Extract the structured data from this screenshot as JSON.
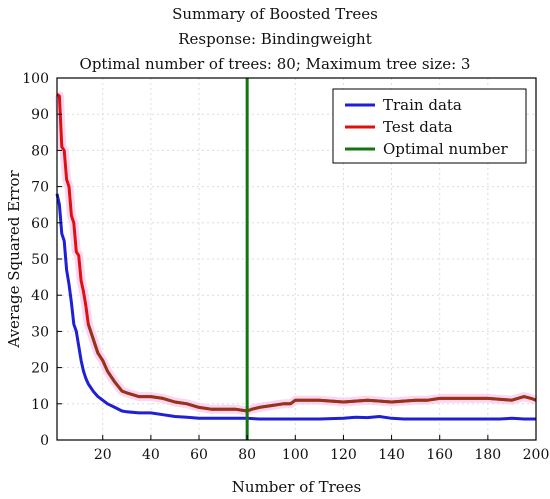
{
  "chart_data": {
    "type": "line",
    "title": "Summary of Boosted Trees",
    "subtitle": "Response: Bindingweight",
    "subtitle2": "Optimal number of trees: 80; Maximum tree size: 3",
    "xlabel": "Number of Trees",
    "ylabel": "Average Squared Error",
    "xlim": [
      1,
      200
    ],
    "ylim": [
      0,
      100
    ],
    "xticks": [
      20,
      40,
      60,
      80,
      100,
      120,
      140,
      160,
      180,
      200
    ],
    "yticks": [
      0,
      10,
      20,
      30,
      40,
      50,
      60,
      70,
      80,
      90,
      100
    ],
    "grid": true,
    "legend_position": "top-right",
    "optimal_x": 80,
    "series": [
      {
        "name": "Train data",
        "color": "#1f1fd6",
        "x": [
          1,
          2,
          3,
          4,
          5,
          6,
          7,
          8,
          9,
          10,
          11,
          12,
          13,
          14,
          15,
          16,
          18,
          20,
          22,
          25,
          28,
          30,
          35,
          40,
          45,
          50,
          55,
          60,
          65,
          70,
          75,
          80,
          85,
          90,
          100,
          110,
          120,
          125,
          130,
          135,
          140,
          145,
          150,
          160,
          170,
          180,
          185,
          190,
          195,
          200
        ],
        "values": [
          68,
          65,
          57,
          55,
          47,
          43,
          38,
          32,
          30,
          26,
          22,
          19,
          17,
          15.5,
          14.5,
          13.5,
          12,
          11,
          10,
          9,
          8,
          7.8,
          7.5,
          7.5,
          7,
          6.5,
          6.3,
          6,
          6,
          6,
          6,
          6,
          5.8,
          5.8,
          5.8,
          5.8,
          6,
          6.3,
          6.2,
          6.5,
          6,
          5.8,
          5.8,
          5.8,
          5.8,
          5.8,
          5.8,
          6,
          5.8,
          5.8
        ]
      },
      {
        "name": "Test data",
        "color": "#e01010",
        "x": [
          1,
          2,
          3,
          4,
          5,
          6,
          7,
          8,
          9,
          10,
          11,
          12,
          13,
          14,
          15,
          16,
          17,
          18,
          20,
          22,
          25,
          28,
          30,
          35,
          40,
          45,
          50,
          55,
          60,
          65,
          70,
          75,
          80,
          82,
          85,
          90,
          95,
          98,
          100,
          110,
          120,
          130,
          140,
          150,
          155,
          160,
          170,
          180,
          190,
          195,
          198,
          200
        ],
        "values": [
          95.5,
          95,
          81,
          80,
          72,
          70,
          62,
          60,
          52,
          51,
          44,
          41,
          37,
          32,
          30,
          28,
          26,
          24,
          22,
          19,
          16,
          13.5,
          13,
          12,
          12,
          11.5,
          10.5,
          10,
          9,
          8.5,
          8.5,
          8.5,
          8,
          8.5,
          9,
          9.5,
          10,
          10,
          11,
          11,
          10.5,
          11,
          10.5,
          11,
          11,
          11.5,
          11.5,
          11.5,
          11,
          12,
          11.5,
          11
        ]
      },
      {
        "name": "Optimal number",
        "color": "#127512"
      }
    ]
  }
}
